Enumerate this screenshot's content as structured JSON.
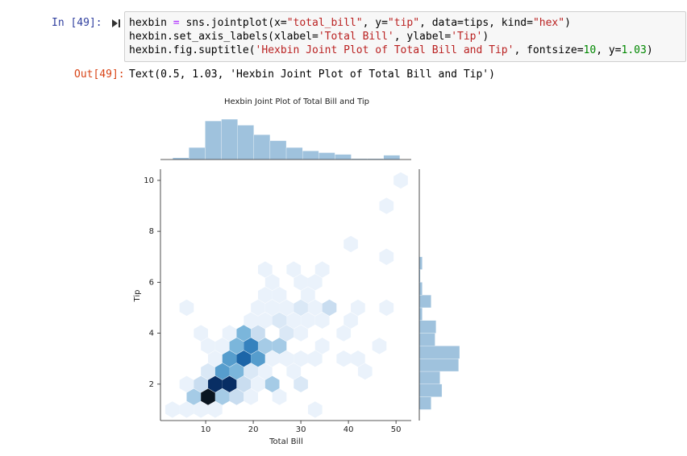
{
  "notebook": {
    "input_prompt": "In [49]:",
    "code": [
      [
        {
          "text": "hexbin ",
          "color": "#000000"
        },
        {
          "text": "=",
          "color": "#aa22ff"
        },
        {
          "text": " sns.jointplot(x=",
          "color": "#000000"
        },
        {
          "text": "\"total_bill\"",
          "color": "#ba2121"
        },
        {
          "text": ", y=",
          "color": "#000000"
        },
        {
          "text": "\"tip\"",
          "color": "#ba2121"
        },
        {
          "text": ", data=tips, kind=",
          "color": "#000000"
        },
        {
          "text": "\"hex\"",
          "color": "#ba2121"
        },
        {
          "text": ")",
          "color": "#000000"
        }
      ],
      [
        {
          "text": "hexbin.set_axis_labels(xlabel=",
          "color": "#000000"
        },
        {
          "text": "'Total Bill'",
          "color": "#ba2121"
        },
        {
          "text": ", ylabel=",
          "color": "#000000"
        },
        {
          "text": "'Tip'",
          "color": "#ba2121"
        },
        {
          "text": ")",
          "color": "#000000"
        }
      ],
      [
        {
          "text": "hexbin.fig.suptitle(",
          "color": "#000000"
        },
        {
          "text": "'Hexbin Joint Plot of Total Bill and Tip'",
          "color": "#ba2121"
        },
        {
          "text": ", fontsize=",
          "color": "#000000"
        },
        {
          "text": "10",
          "color": "#008800"
        },
        {
          "text": ", y=",
          "color": "#000000"
        },
        {
          "text": "1.03",
          "color": "#008800"
        },
        {
          "text": ")",
          "color": "#000000"
        }
      ]
    ],
    "output_prompt": "Out[49]:",
    "output_text": "Text(0.5, 1.03, 'Hexbin Joint Plot of Total Bill and Tip')"
  },
  "chart_data": {
    "type": "hexbin",
    "title": "Hexbin Joint Plot of Total Bill and Tip",
    "xlabel": "Total Bill",
    "ylabel": "Tip",
    "xlim": [
      0.5,
      53.2
    ],
    "ylim": [
      0.57,
      10.44
    ],
    "xticks": [
      10,
      20,
      30,
      40,
      50
    ],
    "yticks": [
      2,
      4,
      6,
      8,
      10
    ],
    "colors": [
      "#eaf2fb",
      "#c6dbef",
      "#6aaed6",
      "#2171b5",
      "#08306b",
      "#0a1520"
    ],
    "x": [
      51,
      48,
      40.5,
      48,
      22.5,
      28.5,
      34.5,
      24,
      30,
      33,
      22.5,
      25.5,
      31.5,
      6,
      21,
      24,
      27,
      30,
      33,
      36,
      42,
      48,
      19.5,
      22.5,
      25.5,
      28.5,
      31.5,
      34.5,
      40.5,
      9,
      15,
      18,
      21,
      27,
      30,
      39,
      10.5,
      13.5,
      16.5,
      19.5,
      22.5,
      25.5,
      34.5,
      46.5,
      12,
      15,
      18,
      21,
      24,
      27,
      30,
      33,
      39,
      42,
      10.5,
      13.5,
      16.5,
      19.5,
      22.5,
      28.5,
      43.5,
      6,
      9,
      12,
      15,
      18,
      21,
      24,
      30,
      7.5,
      10.5,
      13.5,
      16.5,
      19.5,
      25.5,
      3,
      6,
      9,
      12,
      33
    ],
    "y": [
      10,
      9,
      7.5,
      7,
      6.5,
      6.5,
      6.5,
      6,
      6,
      6,
      5.5,
      5.5,
      5.5,
      5,
      5,
      5,
      5,
      5,
      5,
      5,
      5,
      5,
      4.5,
      4.5,
      4.5,
      4.5,
      4.5,
      4.5,
      4.5,
      4,
      4,
      4,
      4,
      4,
      4,
      4,
      3.5,
      3.5,
      3.5,
      3.5,
      3.5,
      3.5,
      3.5,
      3.5,
      3,
      3,
      3,
      3,
      3,
      3,
      3,
      3,
      3,
      3,
      2.5,
      2.5,
      2.5,
      2.5,
      2.5,
      2.5,
      2.5,
      2,
      2,
      2,
      2,
      2,
      2,
      2,
      2,
      1.5,
      1.5,
      1.5,
      1.5,
      1.5,
      1.5,
      1,
      1,
      1,
      1,
      1
    ],
    "counts": [
      1,
      1,
      1,
      1,
      1,
      1,
      1,
      1,
      1,
      1,
      1,
      1,
      1,
      1,
      1,
      1,
      1,
      2,
      1,
      3,
      1,
      1,
      1,
      1,
      2,
      1,
      1,
      1,
      1,
      1,
      1,
      5,
      3,
      2,
      1,
      1,
      1,
      1,
      5,
      7,
      4,
      4,
      1,
      1,
      1,
      6,
      8,
      6,
      1,
      1,
      1,
      1,
      1,
      1,
      2,
      6,
      5,
      2,
      1,
      1,
      1,
      1,
      3,
      10,
      10,
      3,
      1,
      4,
      2,
      4,
      12,
      4,
      3,
      1,
      1,
      1,
      1,
      1,
      1,
      1
    ],
    "hist_x": {
      "bins": [
        3.07,
        6.48,
        9.89,
        13.3,
        16.71,
        20.12,
        23.53,
        26.94,
        30.35,
        33.76,
        37.17,
        40.58,
        43.99,
        47.4,
        50.81
      ],
      "counts": [
        2,
        14,
        45,
        47,
        40,
        29,
        22,
        14,
        10,
        8,
        6,
        1,
        1,
        5
      ],
      "color": "#9fc2dd"
    },
    "hist_y": {
      "bins": [
        1,
        1.5,
        2,
        2.5,
        3,
        3.5,
        4,
        4.5,
        5,
        5.5,
        6,
        6.5,
        7
      ],
      "counts": [
        12,
        23,
        21,
        40,
        41,
        16,
        17,
        3,
        12,
        3,
        1,
        3
      ],
      "color": "#9fc2dd"
    }
  }
}
